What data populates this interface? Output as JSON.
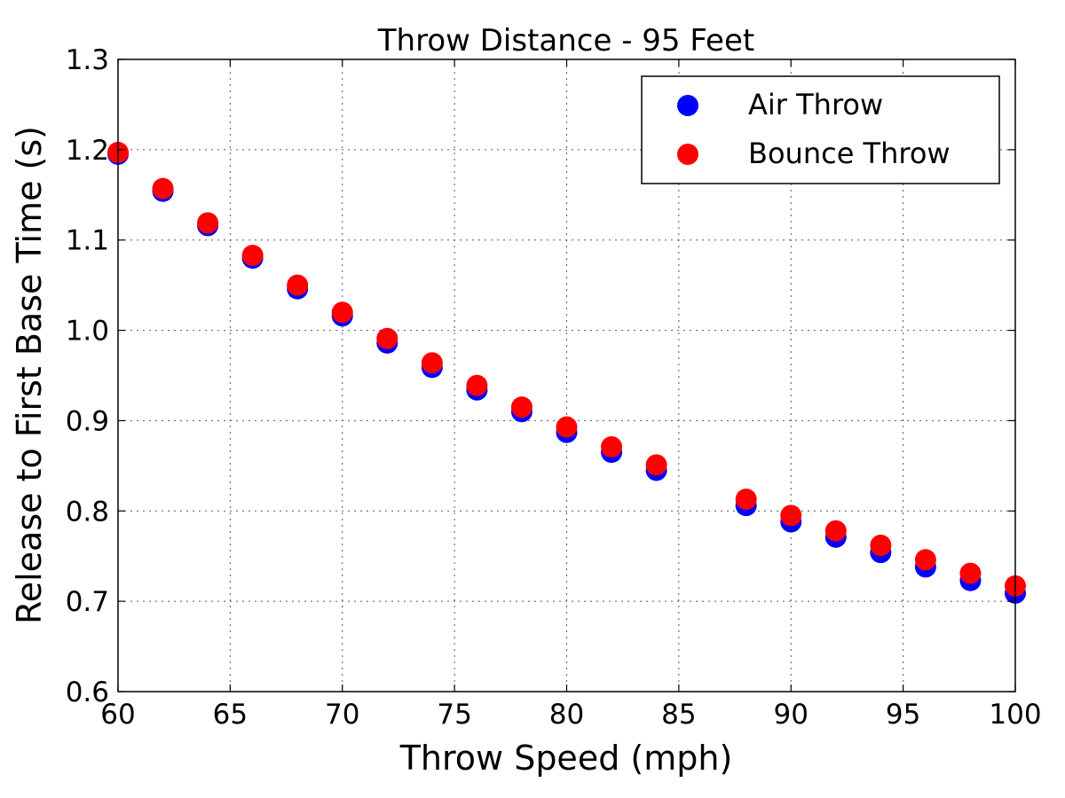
{
  "chart_data": {
    "type": "scatter",
    "title": "Throw Distance - 95 Feet",
    "xlabel": "Throw Speed (mph)",
    "ylabel": "Release to First Base Time (s)",
    "xlim": [
      60,
      100
    ],
    "ylim": [
      0.6,
      1.3
    ],
    "xticks": [
      60,
      65,
      70,
      75,
      80,
      85,
      90,
      95,
      100
    ],
    "yticks": [
      0.6,
      0.7,
      0.8,
      0.9,
      1.0,
      1.1,
      1.2,
      1.3
    ],
    "xtick_labels": [
      "60",
      "65",
      "70",
      "75",
      "80",
      "85",
      "90",
      "95",
      "100"
    ],
    "ytick_labels": [
      "0.6",
      "0.7",
      "0.8",
      "0.9",
      "1.0",
      "1.1",
      "1.2",
      "1.3"
    ],
    "grid": true,
    "legend_position": "top-right",
    "x": [
      60,
      62,
      64,
      66,
      68,
      70,
      72,
      74,
      76,
      78,
      80,
      82,
      84,
      88,
      90,
      92,
      94,
      96,
      98,
      100
    ],
    "series": [
      {
        "name": "Air Throw",
        "color": "#0000ff",
        "values": [
          1.195,
          1.154,
          1.116,
          1.08,
          1.046,
          1.016,
          0.986,
          0.959,
          0.934,
          0.91,
          0.887,
          0.865,
          0.845,
          0.806,
          0.788,
          0.771,
          0.754,
          0.738,
          0.723,
          0.709
        ]
      },
      {
        "name": "Bounce Throw",
        "color": "#ff0000",
        "values": [
          1.197,
          1.157,
          1.119,
          1.083,
          1.05,
          1.02,
          0.991,
          0.964,
          0.939,
          0.915,
          0.893,
          0.871,
          0.851,
          0.813,
          0.795,
          0.778,
          0.762,
          0.746,
          0.731,
          0.717
        ]
      }
    ]
  }
}
